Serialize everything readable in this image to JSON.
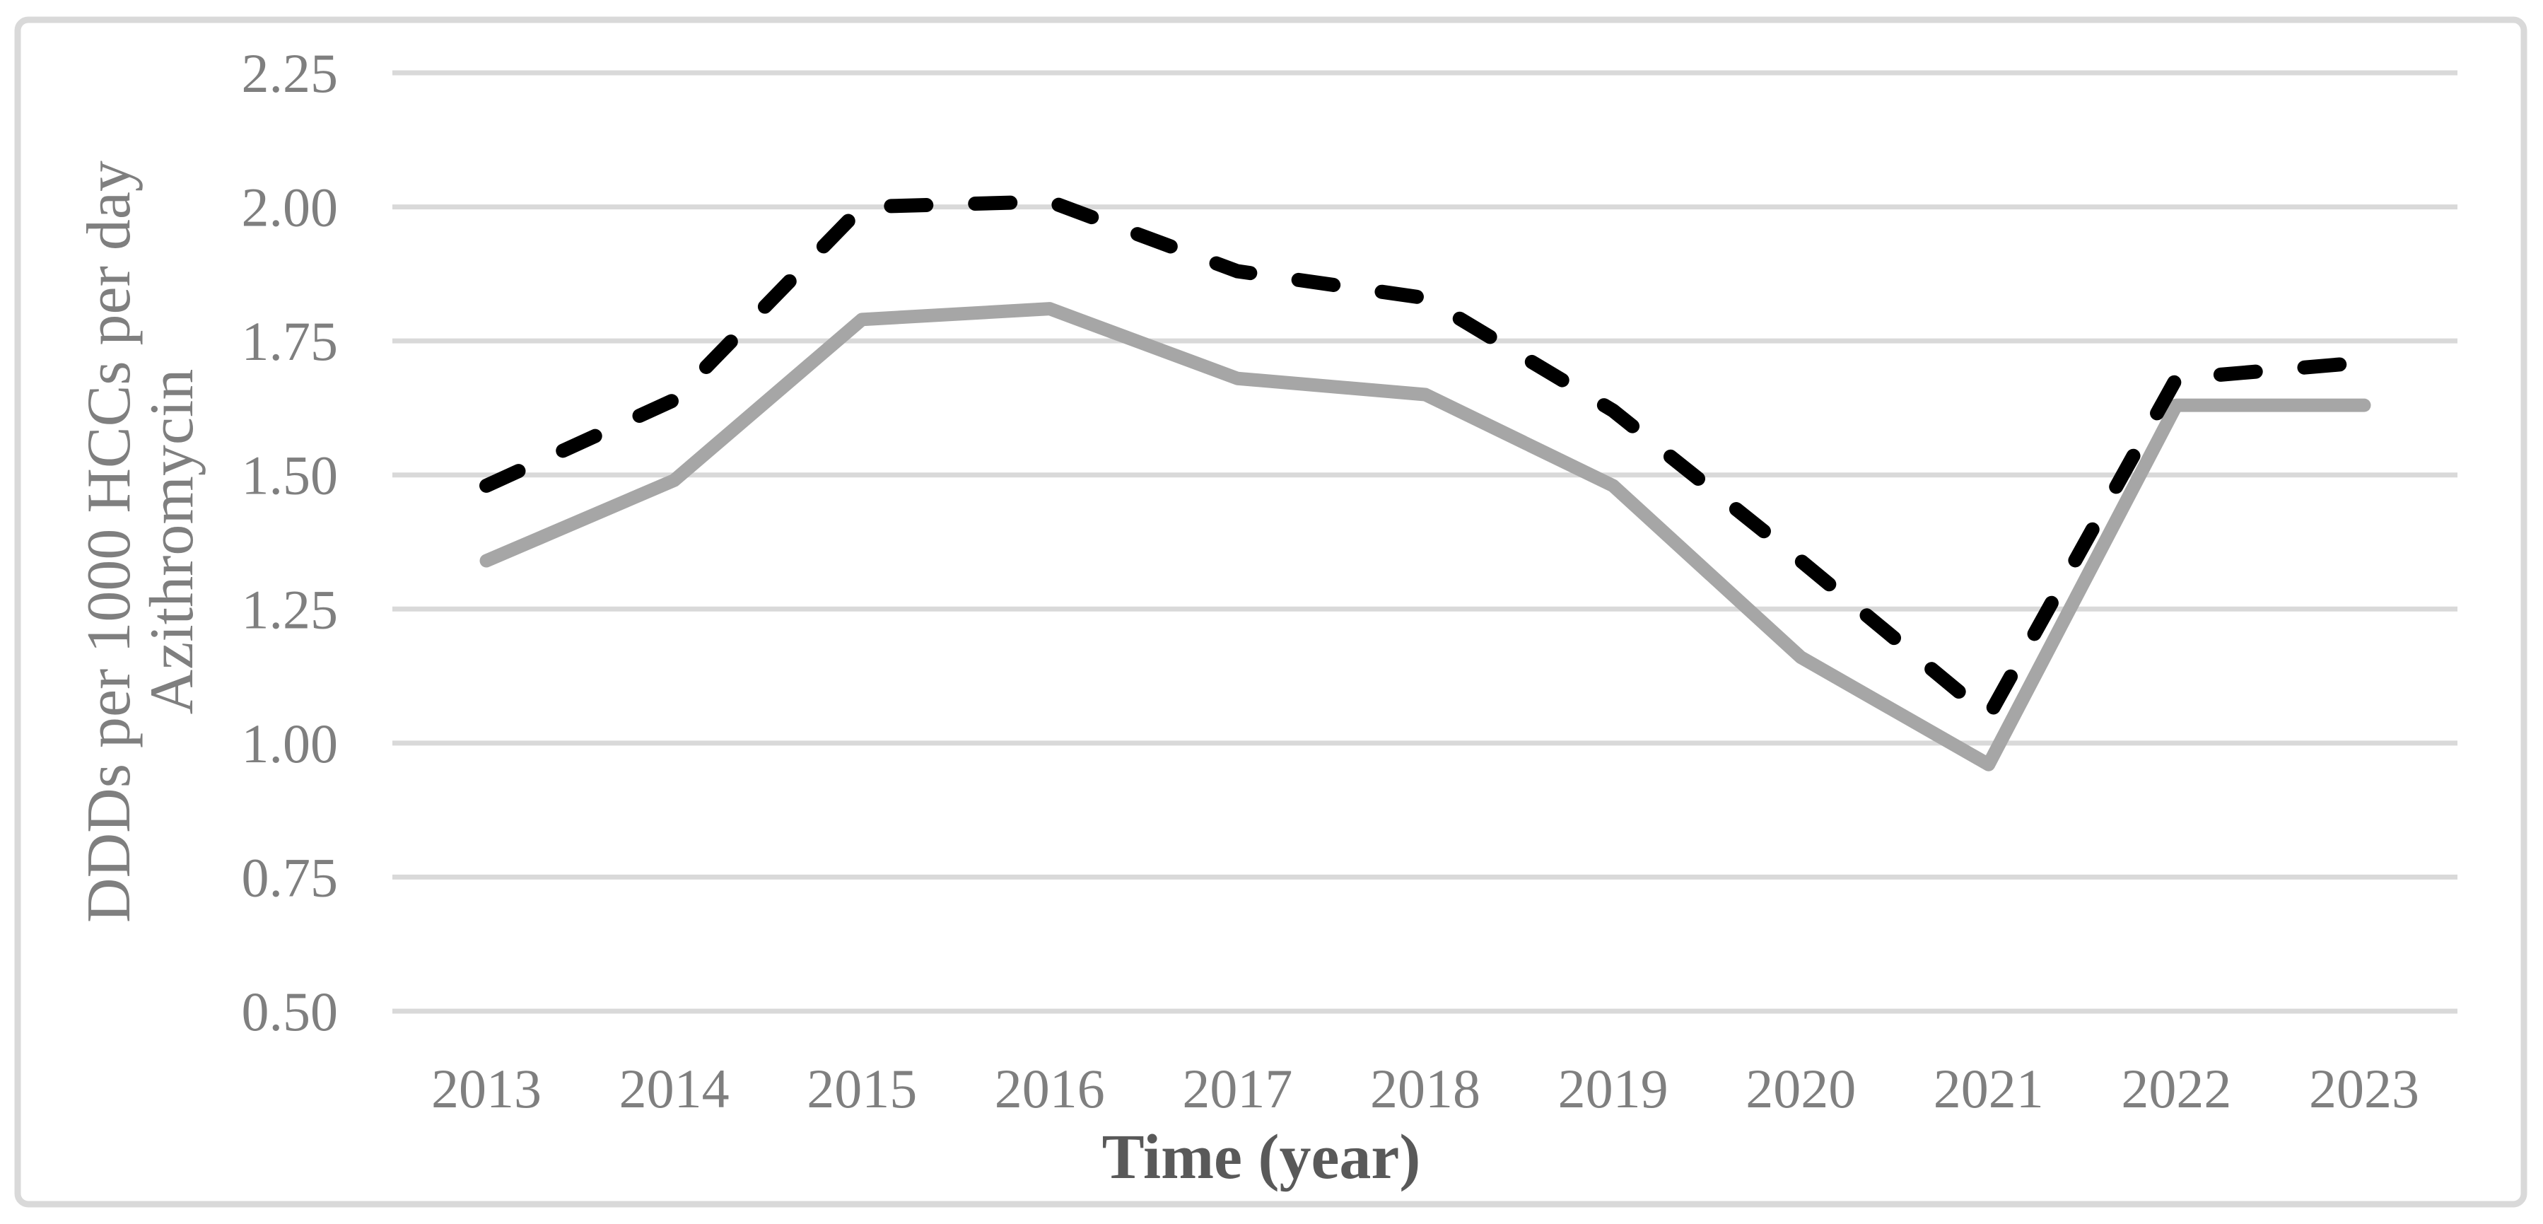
{
  "chart_data": {
    "type": "line",
    "title": "",
    "xlabel": "Time (year)",
    "ylabel_line1": "DDDs per 1000 HCCs per day",
    "ylabel_line2": "Azithromycin",
    "categories": [
      "2013",
      "2014",
      "2015",
      "2016",
      "2017",
      "2018",
      "2019",
      "2020",
      "2021",
      "2022",
      "2023"
    ],
    "series": [
      {
        "name": "solid gray line",
        "style": "solid",
        "color": "#a6a6a6",
        "stroke_width": 19,
        "values": [
          1.34,
          1.49,
          1.79,
          1.81,
          1.68,
          1.65,
          1.48,
          1.16,
          0.96,
          1.63,
          1.63
        ]
      },
      {
        "name": "dashed black line",
        "style": "dashed",
        "color": "#000000",
        "stroke_width": 20,
        "values": [
          1.48,
          1.64,
          2.0,
          2.01,
          1.88,
          1.83,
          1.62,
          1.34,
          1.05,
          1.68,
          1.71
        ]
      }
    ],
    "y_ticks": [
      "2.25",
      "2.00",
      "1.75",
      "1.50",
      "1.25",
      "1.00",
      "0.75",
      "0.50"
    ],
    "ylim": [
      0.5,
      2.25
    ],
    "grid": true,
    "legend": "none"
  },
  "colors": {
    "background": "#ffffff",
    "grid": "#d9d9d9",
    "figure_border": "#d9d9d9",
    "tick_label": "#7f7f7f",
    "x_axis_title": "#595959",
    "y_axis_title": "#7f7f7f"
  }
}
